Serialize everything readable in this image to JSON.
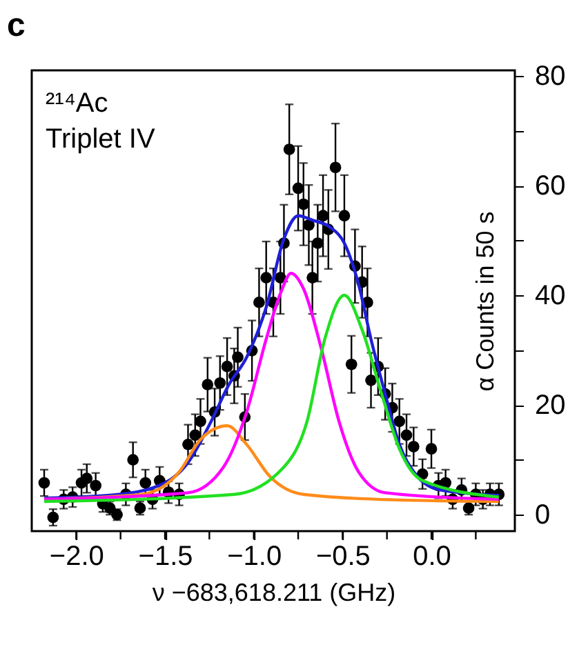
{
  "chart_data": {
    "type": "scatter",
    "title": "c",
    "ylabel": "α Counts in 50 s",
    "xlabel": "ν −683,618.211 (GHz)",
    "annotations": [
      "²¹⁴Ac",
      "Triplet IV"
    ],
    "xlim": [
      -2.25,
      0.47
    ],
    "ylim": [
      -3,
      81
    ],
    "xticks": [
      {
        "value": -2.0,
        "label": "−2.0"
      },
      {
        "value": -1.75,
        "label": null
      },
      {
        "value": -1.5,
        "label": "−1.5"
      },
      {
        "value": -1.25,
        "label": null
      },
      {
        "value": -1.0,
        "label": "−1.0"
      },
      {
        "value": -0.75,
        "label": null
      },
      {
        "value": -0.5,
        "label": "−0.5"
      },
      {
        "value": -0.25,
        "label": null
      },
      {
        "value": 0.0,
        "label": "0.0"
      },
      {
        "value": 0.25,
        "label": null
      }
    ],
    "yticks": [
      0,
      {
        "value": 10,
        "label": null
      },
      20,
      {
        "value": 30,
        "label": null
      },
      40,
      {
        "value": 50,
        "label": null
      },
      60,
      {
        "value": 70,
        "label": null
      },
      80
    ],
    "grid": false,
    "series": [
      {
        "marker": "circle",
        "color": "#000000",
        "x": [
          -2.18,
          -2.13,
          -2.07,
          -2.02,
          -1.97,
          -1.94,
          -1.89,
          -1.85,
          -1.81,
          -1.77,
          -1.72,
          -1.68,
          -1.64,
          -1.61,
          -1.57,
          -1.53,
          -1.48,
          -1.42,
          -1.37,
          -1.33,
          -1.3,
          -1.26,
          -1.22,
          -1.19,
          -1.15,
          -1.11,
          -1.09,
          -1.05,
          -1.01,
          -0.97,
          -0.93,
          -0.89,
          -0.85,
          -0.83,
          -0.8,
          -0.75,
          -0.72,
          -0.69,
          -0.67,
          -0.64,
          -0.61,
          -0.58,
          -0.54,
          -0.49,
          -0.45,
          -0.43,
          -0.39,
          -0.36,
          -0.34,
          -0.3,
          -0.26,
          -0.22,
          -0.18,
          -0.14,
          -0.1,
          -0.05,
          0.0,
          0.04,
          0.08,
          0.12,
          0.17,
          0.21,
          0.25,
          0.29,
          0.33,
          0.38
        ],
        "values": [
          5.8,
          -0.5,
          2.8,
          3.2,
          5.8,
          6.6,
          5.3,
          2,
          1.2,
          0,
          3.7,
          10,
          1.2,
          5.8,
          2.8,
          6.2,
          4.1,
          3.7,
          12.8,
          14.5,
          17,
          23.7,
          18.7,
          24,
          27,
          25.3,
          28.7,
          17.8,
          29.9,
          38.7,
          43.2,
          38.7,
          43.2,
          49.5,
          66.6,
          59.5,
          56.6,
          52.8,
          43.2,
          49.5,
          54.5,
          52,
          63.3,
          54.5,
          27.4,
          45.3,
          42.4,
          38.7,
          24.5,
          27,
          22,
          19.5,
          17,
          14.5,
          12.4,
          7.4,
          12,
          5.3,
          5.8,
          2.8,
          4.5,
          1.2,
          3.7,
          2.8,
          3.7,
          3.7
        ],
        "errors": [
          2.4,
          1.5,
          1.7,
          1.8,
          2.4,
          2.6,
          2.3,
          1.5,
          1.2,
          1,
          2,
          3.2,
          1.2,
          2.4,
          1.7,
          2.5,
          2,
          2,
          3.6,
          3.8,
          4.1,
          4.9,
          4.3,
          4.9,
          5.2,
          5,
          5.4,
          4.2,
          5.5,
          6.2,
          6.6,
          6.2,
          6.6,
          7,
          8.2,
          7.7,
          7.5,
          7.3,
          6.6,
          7,
          7.4,
          7.2,
          8,
          7.4,
          5.2,
          6.7,
          6.5,
          6.2,
          5,
          5.2,
          4.7,
          4.4,
          4.1,
          3.8,
          3.5,
          2.7,
          3.5,
          2.3,
          2.4,
          1.7,
          2.1,
          1.2,
          2,
          1.7,
          2,
          2
        ]
      },
      {
        "type": "line",
        "color": "#1f1fd8",
        "x": [
          -2.18,
          -1.76,
          -1.5,
          -1.37,
          -1.24,
          -1.14,
          -1.04,
          -0.93,
          -0.83,
          -0.75,
          -0.67,
          -0.57,
          -0.49,
          -0.41,
          -0.34,
          -0.26,
          -0.18,
          -0.08,
          0.05,
          0.38
        ],
        "values": [
          3,
          3.7,
          5.8,
          9.5,
          17,
          23.7,
          28.7,
          37.8,
          50.3,
          54.5,
          53.7,
          52.4,
          49.5,
          42,
          32,
          22,
          12.8,
          7,
          4.5,
          3.5
        ]
      },
      {
        "type": "line",
        "color": "#ff8c1a",
        "x": [
          -2.18,
          -1.63,
          -1.42,
          -1.3,
          -1.15,
          -1.04,
          -0.91,
          -0.72,
          -0.21,
          0.38
        ],
        "values": [
          2.8,
          3.7,
          7.8,
          13.7,
          16.2,
          12.8,
          7,
          3.7,
          2.7,
          2.4
        ]
      },
      {
        "type": "line",
        "color": "#ff00ff",
        "x": [
          -2.18,
          -1.37,
          -1.17,
          -1.04,
          -0.93,
          -0.85,
          -0.79,
          -0.72,
          -0.62,
          -0.52,
          -0.41,
          -0.26,
          0.38
        ],
        "values": [
          2.8,
          4,
          8.7,
          18.7,
          32,
          40.3,
          44,
          41.2,
          30.3,
          17,
          7.8,
          4,
          2.8
        ]
      },
      {
        "type": "line",
        "color": "#22e022",
        "x": [
          -2.18,
          -1.11,
          -0.83,
          -0.7,
          -0.6,
          -0.49,
          -0.39,
          -0.28,
          -0.18,
          -0.05,
          0.38
        ],
        "values": [
          2.4,
          3.7,
          8.7,
          17,
          32,
          40,
          33.7,
          22,
          12,
          6.2,
          3.2
        ]
      }
    ]
  }
}
